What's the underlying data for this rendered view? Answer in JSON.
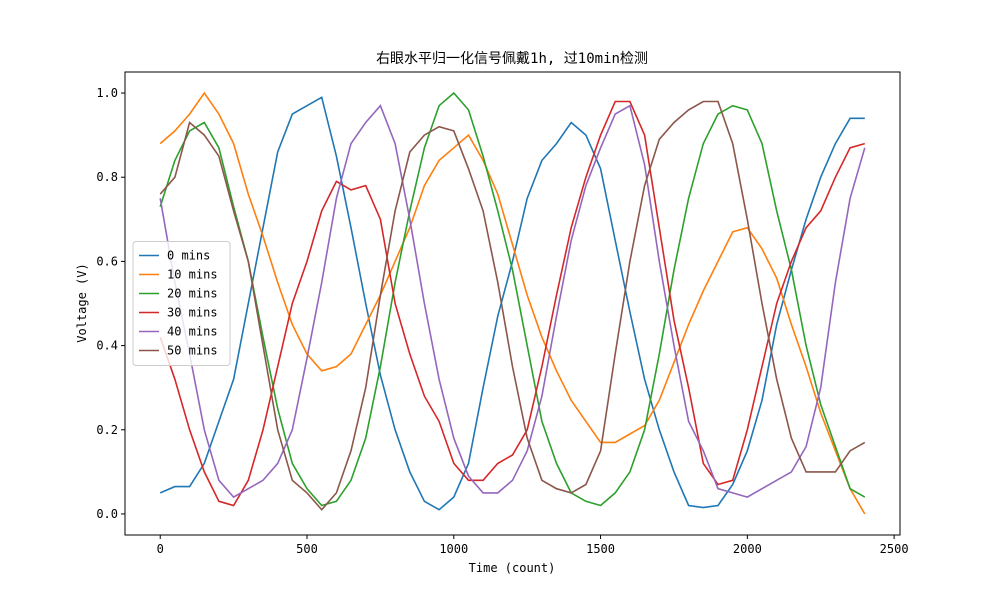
{
  "chart_data": {
    "type": "line",
    "title": "右眼水平归一化信号佩戴1h, 过10min检测",
    "x_label": "Time (count)",
    "y_label": "Voltage (V)",
    "x": [
      0,
      50,
      100,
      150,
      200,
      250,
      300,
      350,
      400,
      450,
      500,
      550,
      600,
      650,
      700,
      750,
      800,
      850,
      900,
      950,
      1000,
      1050,
      1100,
      1150,
      1200,
      1250,
      1300,
      1350,
      1400,
      1450,
      1500,
      1550,
      1600,
      1650,
      1700,
      1750,
      1800,
      1850,
      1900,
      1950,
      2000,
      2050,
      2100,
      2150,
      2200,
      2250,
      2300,
      2350,
      2400
    ],
    "series": [
      {
        "name": "0 mins",
        "color": "#1f77b4",
        "values": [
          0.05,
          0.065,
          0.065,
          0.12,
          0.22,
          0.32,
          0.5,
          0.68,
          0.86,
          0.95,
          0.97,
          0.99,
          0.85,
          0.68,
          0.5,
          0.33,
          0.2,
          0.1,
          0.03,
          0.01,
          0.04,
          0.12,
          0.3,
          0.47,
          0.6,
          0.75,
          0.84,
          0.88,
          0.93,
          0.9,
          0.82,
          0.65,
          0.48,
          0.32,
          0.2,
          0.1,
          0.02,
          0.015,
          0.02,
          0.07,
          0.15,
          0.27,
          0.45,
          0.58,
          0.7,
          0.8,
          0.88,
          0.94,
          0.94
        ]
      },
      {
        "name": "10 mins",
        "color": "#ff7f0e",
        "values": [
          0.88,
          0.91,
          0.95,
          1.0,
          0.95,
          0.88,
          0.76,
          0.66,
          0.55,
          0.45,
          0.38,
          0.34,
          0.35,
          0.38,
          0.45,
          0.52,
          0.6,
          0.68,
          0.78,
          0.84,
          0.87,
          0.9,
          0.84,
          0.76,
          0.64,
          0.52,
          0.42,
          0.34,
          0.27,
          0.22,
          0.17,
          0.17,
          0.19,
          0.21,
          0.27,
          0.36,
          0.45,
          0.53,
          0.6,
          0.67,
          0.68,
          0.63,
          0.56,
          0.45,
          0.35,
          0.24,
          0.15,
          0.06,
          0.0
        ]
      },
      {
        "name": "20 mins",
        "color": "#2ca02c",
        "values": [
          0.73,
          0.84,
          0.91,
          0.93,
          0.87,
          0.73,
          0.6,
          0.42,
          0.25,
          0.12,
          0.06,
          0.02,
          0.03,
          0.08,
          0.18,
          0.35,
          0.55,
          0.72,
          0.87,
          0.97,
          1.0,
          0.96,
          0.85,
          0.72,
          0.58,
          0.4,
          0.22,
          0.12,
          0.05,
          0.03,
          0.02,
          0.05,
          0.1,
          0.2,
          0.38,
          0.58,
          0.75,
          0.88,
          0.95,
          0.97,
          0.96,
          0.88,
          0.72,
          0.58,
          0.4,
          0.26,
          0.16,
          0.06,
          0.04
        ]
      },
      {
        "name": "30 mins",
        "color": "#d62728",
        "values": [
          0.42,
          0.32,
          0.2,
          0.1,
          0.03,
          0.02,
          0.08,
          0.2,
          0.35,
          0.5,
          0.6,
          0.72,
          0.79,
          0.77,
          0.78,
          0.7,
          0.5,
          0.38,
          0.28,
          0.22,
          0.12,
          0.08,
          0.08,
          0.12,
          0.14,
          0.2,
          0.35,
          0.52,
          0.68,
          0.8,
          0.9,
          0.98,
          0.98,
          0.9,
          0.68,
          0.46,
          0.3,
          0.12,
          0.07,
          0.08,
          0.2,
          0.35,
          0.5,
          0.6,
          0.68,
          0.72,
          0.8,
          0.87,
          0.88
        ]
      },
      {
        "name": "40 mins",
        "color": "#9467bd",
        "values": [
          0.75,
          0.55,
          0.38,
          0.2,
          0.08,
          0.04,
          0.06,
          0.08,
          0.12,
          0.2,
          0.37,
          0.55,
          0.75,
          0.88,
          0.93,
          0.97,
          0.88,
          0.7,
          0.5,
          0.32,
          0.18,
          0.09,
          0.05,
          0.05,
          0.08,
          0.15,
          0.28,
          0.47,
          0.65,
          0.78,
          0.87,
          0.95,
          0.97,
          0.83,
          0.6,
          0.4,
          0.22,
          0.15,
          0.06,
          0.05,
          0.04,
          0.06,
          0.08,
          0.1,
          0.16,
          0.3,
          0.55,
          0.75,
          0.87
        ]
      },
      {
        "name": "50 mins",
        "color": "#8c564b",
        "values": [
          0.76,
          0.8,
          0.93,
          0.9,
          0.85,
          0.72,
          0.6,
          0.4,
          0.2,
          0.08,
          0.05,
          0.01,
          0.05,
          0.15,
          0.3,
          0.52,
          0.72,
          0.86,
          0.9,
          0.92,
          0.91,
          0.82,
          0.72,
          0.55,
          0.35,
          0.18,
          0.08,
          0.06,
          0.05,
          0.07,
          0.15,
          0.38,
          0.6,
          0.78,
          0.89,
          0.93,
          0.96,
          0.98,
          0.98,
          0.88,
          0.7,
          0.5,
          0.32,
          0.18,
          0.1,
          0.1,
          0.1,
          0.15,
          0.17
        ]
      }
    ],
    "xlim": [
      -120,
      2520
    ],
    "xticks": [
      0,
      500,
      1000,
      1500,
      2000,
      2500
    ],
    "ylim": [
      -0.05,
      1.05
    ],
    "yticks": [
      {
        "value": 0,
        "label": "0.0"
      },
      {
        "value": 0.2,
        "label": "0.2"
      },
      {
        "value": 0.4,
        "label": "0.4"
      },
      {
        "value": 0.6,
        "label": "0.6"
      },
      {
        "value": 0.8,
        "label": "0.8"
      },
      {
        "value": 1,
        "label": "1.0"
      }
    ],
    "legend": "center left"
  }
}
